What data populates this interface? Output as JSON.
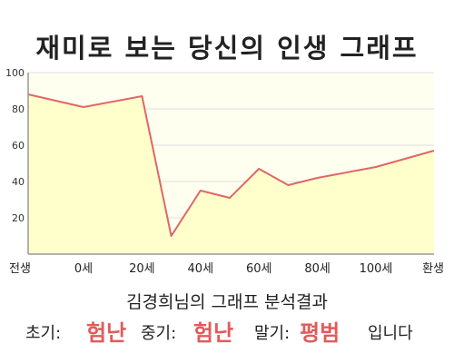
{
  "title": "재미로 보는 당신의 인생 그래프",
  "chart_data": {
    "type": "area",
    "title": "재미로 보는 당신의 인생 그래프",
    "xlabel": "",
    "ylabel": "",
    "x_tick_labels": [
      "전생",
      "0세",
      "20세",
      "40세",
      "60세",
      "80세",
      "100세",
      "환생"
    ],
    "y_ticks": [
      20,
      40,
      60,
      80,
      100
    ],
    "ylim": [
      0,
      100
    ],
    "grid": true,
    "series": [
      {
        "points": [
          {
            "x": "전생",
            "y": 88
          },
          {
            "x": "0세",
            "y": 81
          },
          {
            "x": "20세",
            "y": 87
          },
          {
            "x": "30세",
            "y": 10
          },
          {
            "x": "40세",
            "y": 35
          },
          {
            "x": "50세",
            "y": 31
          },
          {
            "x": "60세",
            "y": 47
          },
          {
            "x": "70세",
            "y": 38
          },
          {
            "x": "80세",
            "y": 42
          },
          {
            "x": "100세",
            "y": 48
          },
          {
            "x": "환생",
            "y": 57
          }
        ]
      }
    ],
    "colors": {
      "line": "#e06666",
      "fill": "#ffffcc",
      "plot_bg": "#fffff0",
      "grid": "#dddddd",
      "axis": "#999999"
    }
  },
  "subtitle": "김경희님의 그래프 분석결과",
  "verdict": {
    "early_label": "초기:",
    "early_value": "험난",
    "middle_label": "중기:",
    "middle_value": "험난",
    "late_label": "말기:",
    "late_value": "평범",
    "ending": "입니다"
  }
}
